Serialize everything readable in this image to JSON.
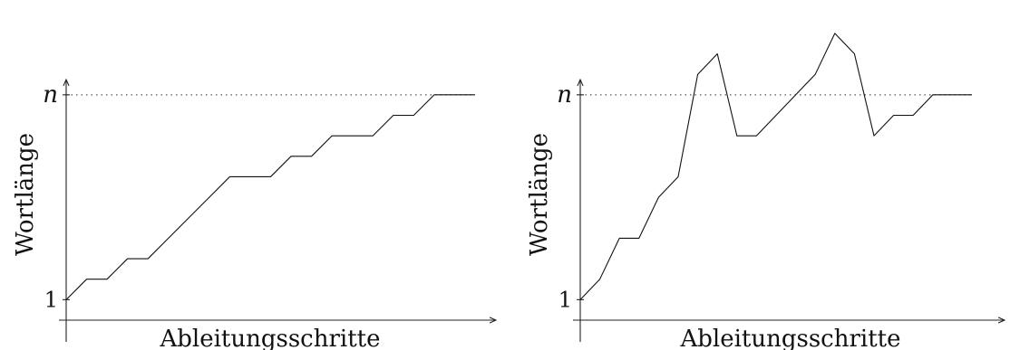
{
  "chart_data": [
    {
      "type": "line",
      "title": "",
      "xlabel": "Ableitungsschritte",
      "ylabel": "Wortlänge",
      "ytick_labels": [
        "1",
        "n"
      ],
      "yticks": [
        1,
        11
      ],
      "reference_line": {
        "y": 11,
        "style": "dotted"
      },
      "xlim": [
        0,
        20
      ],
      "ylim": [
        0,
        12.3
      ],
      "grid": false,
      "series": [
        {
          "x": [
            0,
            1,
            2,
            3,
            4,
            5,
            6,
            7,
            8,
            9,
            10,
            11,
            12,
            13,
            14,
            15,
            16,
            17,
            18,
            19,
            20
          ],
          "y": [
            1,
            2,
            2,
            3,
            3,
            4,
            5,
            6,
            7,
            7,
            7,
            8,
            8,
            9,
            9,
            9,
            10,
            10,
            11,
            11,
            11
          ]
        }
      ]
    },
    {
      "type": "line",
      "title": "",
      "xlabel": "Ableitungsschritte",
      "ylabel": "Wortlänge",
      "ytick_labels": [
        "1",
        "n"
      ],
      "yticks": [
        1,
        11
      ],
      "reference_line": {
        "y": 11,
        "style": "dotted"
      },
      "xlim": [
        0,
        20
      ],
      "ylim": [
        0,
        14
      ],
      "grid": false,
      "series": [
        {
          "x": [
            0,
            1,
            2,
            3,
            4,
            5,
            6,
            7,
            8,
            9,
            10,
            11,
            12,
            13,
            14,
            15,
            16,
            17,
            18,
            19,
            20
          ],
          "y": [
            1,
            2,
            4,
            4,
            6,
            7,
            12,
            13,
            9,
            9,
            10,
            11,
            12,
            14,
            13,
            9,
            10,
            10,
            11,
            11,
            11
          ]
        }
      ]
    }
  ]
}
